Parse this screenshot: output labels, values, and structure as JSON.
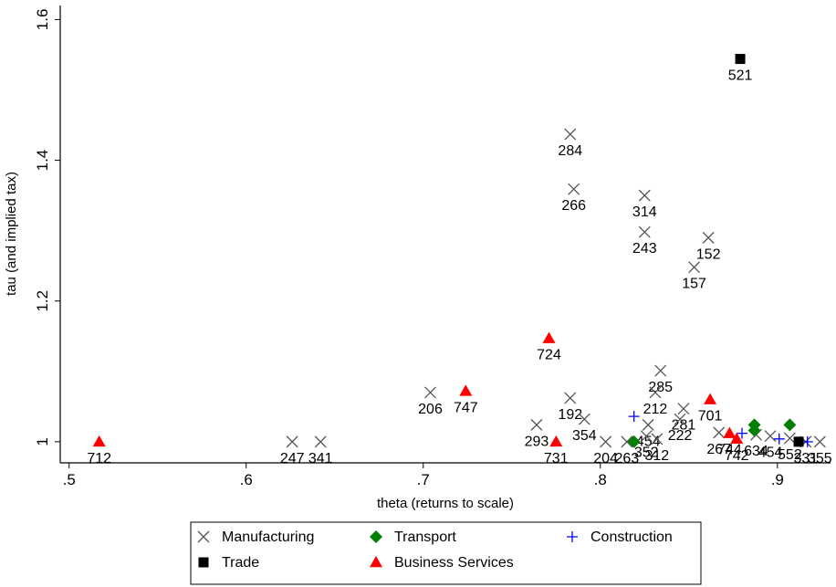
{
  "chart_data": {
    "type": "scatter",
    "xlabel": "theta (returns to scale)",
    "ylabel": "tau (and implied tax)",
    "xlim": [
      0.495,
      0.93
    ],
    "ylim": [
      0.97,
      1.62
    ],
    "xticks": [
      {
        "value": 0.5,
        "label": ".5"
      },
      {
        "value": 0.6,
        "label": ".6"
      },
      {
        "value": 0.7,
        "label": ".7"
      },
      {
        "value": 0.8,
        "label": ".8"
      },
      {
        "value": 0.9,
        "label": ".9"
      }
    ],
    "yticks": [
      {
        "value": 1.0,
        "label": "1"
      },
      {
        "value": 1.2,
        "label": "1.2"
      },
      {
        "value": 1.4,
        "label": "1.4"
      },
      {
        "value": 1.6,
        "label": "1.6"
      }
    ],
    "legend_position": "bottom",
    "grid": false,
    "series": [
      {
        "name": "Manufacturing",
        "marker": "x",
        "color": "#555555",
        "points": [
          {
            "x": 0.783,
            "y": 1.437,
            "label": "284"
          },
          {
            "x": 0.785,
            "y": 1.359,
            "label": "266"
          },
          {
            "x": 0.825,
            "y": 1.35,
            "label": "314"
          },
          {
            "x": 0.825,
            "y": 1.298,
            "label": "243"
          },
          {
            "x": 0.861,
            "y": 1.29,
            "label": "152"
          },
          {
            "x": 0.853,
            "y": 1.248,
            "label": "157"
          },
          {
            "x": 0.834,
            "y": 1.101,
            "label": "285"
          },
          {
            "x": 0.783,
            "y": 1.062,
            "label": "192"
          },
          {
            "x": 0.847,
            "y": 1.047,
            "label": "281"
          },
          {
            "x": 0.704,
            "y": 1.07,
            "label": "206"
          },
          {
            "x": 0.764,
            "y": 1.024,
            "label": "293"
          },
          {
            "x": 0.791,
            "y": 1.032,
            "label": "354"
          },
          {
            "x": 0.827,
            "y": 1.024,
            "label": "454"
          },
          {
            "x": 0.831,
            "y": 1.07,
            "label": "212"
          },
          {
            "x": 0.845,
            "y": 1.032,
            "label": "222"
          },
          {
            "x": 0.826,
            "y": 1.008,
            "label": "352"
          },
          {
            "x": 0.832,
            "y": 1.004,
            "label": "312"
          },
          {
            "x": 0.815,
            "y": 1.0,
            "label": "263"
          },
          {
            "x": 0.803,
            "y": 1.0,
            "label": "204"
          },
          {
            "x": 0.867,
            "y": 1.013,
            "label": "267"
          },
          {
            "x": 0.888,
            "y": 1.01,
            "label": "634"
          },
          {
            "x": 0.896,
            "y": 1.008,
            "label": "454"
          },
          {
            "x": 0.907,
            "y": 1.005,
            "label": "552"
          },
          {
            "x": 0.916,
            "y": 1.0,
            "label": "331"
          },
          {
            "x": 0.924,
            "y": 1.0,
            "label": "355"
          },
          {
            "x": 0.626,
            "y": 1.0,
            "label": "247"
          },
          {
            "x": 0.642,
            "y": 1.0,
            "label": "341"
          }
        ]
      },
      {
        "name": "Transport",
        "marker": "diamond",
        "color": "#007f00",
        "points": [
          {
            "x": 0.819,
            "y": 1.0,
            "label": ""
          },
          {
            "x": 0.887,
            "y": 1.024,
            "label": ""
          },
          {
            "x": 0.887,
            "y": 1.016,
            "label": ""
          },
          {
            "x": 0.907,
            "y": 1.024,
            "label": ""
          }
        ]
      },
      {
        "name": "Construction",
        "marker": "plus",
        "color": "#0000ff",
        "points": [
          {
            "x": 0.819,
            "y": 1.036,
            "label": ""
          },
          {
            "x": 0.88,
            "y": 1.012,
            "label": ""
          },
          {
            "x": 0.901,
            "y": 1.004,
            "label": ""
          },
          {
            "x": 0.917,
            "y": 1.0,
            "label": ""
          }
        ]
      },
      {
        "name": "Trade",
        "marker": "square",
        "color": "#000000",
        "points": [
          {
            "x": 0.879,
            "y": 1.544,
            "label": "521"
          },
          {
            "x": 0.912,
            "y": 1.0,
            "label": ""
          }
        ]
      },
      {
        "name": "Business Services",
        "marker": "triangle",
        "color": "#ff0000",
        "points": [
          {
            "x": 0.724,
            "y": 1.072,
            "label": "747"
          },
          {
            "x": 0.771,
            "y": 1.147,
            "label": "724"
          },
          {
            "x": 0.775,
            "y": 1.0,
            "label": "731"
          },
          {
            "x": 0.517,
            "y": 1.0,
            "label": "712"
          },
          {
            "x": 0.862,
            "y": 1.06,
            "label": "701"
          },
          {
            "x": 0.873,
            "y": 1.012,
            "label": "744"
          },
          {
            "x": 0.877,
            "y": 1.004,
            "label": "742"
          }
        ]
      }
    ]
  },
  "legend": {
    "items": [
      {
        "label": "Manufacturing",
        "marker": "x",
        "color": "#555555"
      },
      {
        "label": "Transport",
        "marker": "diamond",
        "color": "#007f00"
      },
      {
        "label": "Construction",
        "marker": "plus",
        "color": "#0000ff"
      },
      {
        "label": "Trade",
        "marker": "square",
        "color": "#000000"
      },
      {
        "label": "Business Services",
        "marker": "triangle",
        "color": "#ff0000"
      }
    ]
  }
}
